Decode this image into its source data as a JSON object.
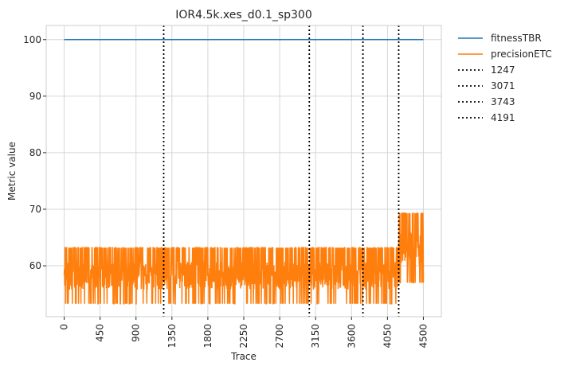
{
  "chart_data": {
    "type": "line",
    "title": "IOR4.5k.xes_d0.1_sp300",
    "xlabel": "Trace",
    "ylabel": "Metric value",
    "xlim": [
      -225,
      4725
    ],
    "ylim": [
      51,
      102.5
    ],
    "xticks": [
      "0",
      "450",
      "900",
      "1350",
      "1800",
      "2250",
      "2700",
      "3150",
      "3600",
      "4050",
      "4500"
    ],
    "yticks": [
      "60",
      "70",
      "80",
      "90",
      "100"
    ],
    "grid": true,
    "legend_position": "outside-top-right",
    "series": [
      {
        "name": "fitnessTBR",
        "color": "#1f77b4",
        "style": "solid",
        "x": [
          0,
          4500
        ],
        "y": [
          100,
          100
        ]
      },
      {
        "name": "precisionETC",
        "color": "#ff7f0e",
        "style": "solid",
        "segments": [
          {
            "x_start": 0,
            "x_end": 4191,
            "band_low": 53.3,
            "band_high": 63.2,
            "typical": 57.5
          },
          {
            "x_start": 4191,
            "x_end": 4500,
            "band_low": 57.0,
            "band_high": 69.3,
            "typical": 63.0
          }
        ]
      }
    ],
    "vlines": [
      {
        "name": "1247",
        "x": 1247,
        "color": "#000000",
        "style": "dotted"
      },
      {
        "name": "3071",
        "x": 3071,
        "color": "#000000",
        "style": "dotted"
      },
      {
        "name": "3743",
        "x": 3743,
        "color": "#000000",
        "style": "dotted"
      },
      {
        "name": "4191",
        "x": 4191,
        "color": "#000000",
        "style": "dotted"
      }
    ]
  }
}
